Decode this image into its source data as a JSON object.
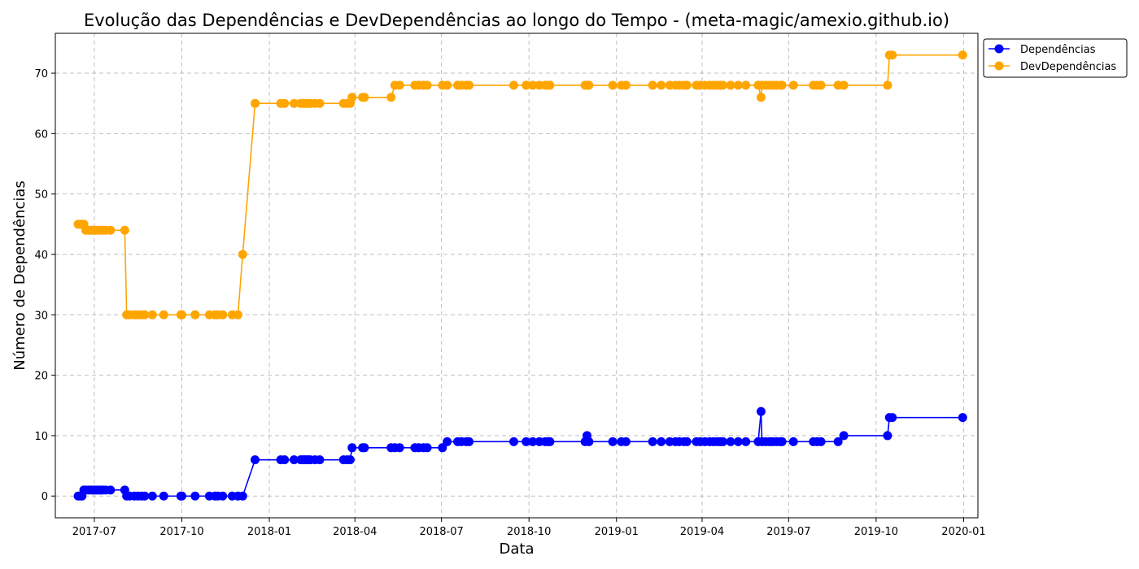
{
  "chart_data": {
    "type": "line",
    "title": "Evolução das Dependências e DevDependências ao longo do Tempo - (meta-magic/amexio.github.io)",
    "xlabel": "Data",
    "ylabel": "Número de Dependências",
    "x_axis": {
      "kind": "date",
      "min": "2017-05-21",
      "max": "2020-01-16",
      "tick_labels": [
        "2017-07",
        "2017-10",
        "2018-01",
        "2018-04",
        "2018-07",
        "2018-10",
        "2019-01",
        "2019-04",
        "2019-07",
        "2019-10",
        "2020-01"
      ]
    },
    "y_axis": {
      "min": -3.6,
      "max": 76.6,
      "tick_labels": [
        "0",
        "10",
        "20",
        "30",
        "40",
        "50",
        "60",
        "70"
      ]
    },
    "grid": true,
    "legend_position": "outside-top-right",
    "series": [
      {
        "name": "Dependências",
        "color": "#0000ff",
        "marker": "circle",
        "points": [
          [
            "2017-06-14",
            0
          ],
          [
            "2017-06-16",
            0
          ],
          [
            "2017-06-18",
            0
          ],
          [
            "2017-06-20",
            1
          ],
          [
            "2017-06-22",
            1
          ],
          [
            "2017-06-25",
            1
          ],
          [
            "2017-06-28",
            1
          ],
          [
            "2017-06-30",
            1
          ],
          [
            "2017-07-02",
            1
          ],
          [
            "2017-07-04",
            1
          ],
          [
            "2017-07-06",
            1
          ],
          [
            "2017-07-08",
            1
          ],
          [
            "2017-07-10",
            1
          ],
          [
            "2017-07-13",
            1
          ],
          [
            "2017-07-18",
            1
          ],
          [
            "2017-08-02",
            1
          ],
          [
            "2017-08-04",
            0
          ],
          [
            "2017-08-07",
            0
          ],
          [
            "2017-08-12",
            0
          ],
          [
            "2017-08-16",
            0
          ],
          [
            "2017-08-20",
            0
          ],
          [
            "2017-08-23",
            0
          ],
          [
            "2017-08-31",
            0
          ],
          [
            "2017-09-12",
            0
          ],
          [
            "2017-09-30",
            0
          ],
          [
            "2017-10-01",
            0
          ],
          [
            "2017-10-15",
            0
          ],
          [
            "2017-10-30",
            0
          ],
          [
            "2017-11-05",
            0
          ],
          [
            "2017-11-08",
            0
          ],
          [
            "2017-11-13",
            0
          ],
          [
            "2017-11-23",
            0
          ],
          [
            "2017-11-29",
            0
          ],
          [
            "2017-12-04",
            0
          ],
          [
            "2017-12-17",
            6
          ],
          [
            "2018-01-13",
            6
          ],
          [
            "2018-01-17",
            6
          ],
          [
            "2018-01-27",
            6
          ],
          [
            "2018-02-03",
            6
          ],
          [
            "2018-02-05",
            6
          ],
          [
            "2018-02-07",
            6
          ],
          [
            "2018-02-09",
            6
          ],
          [
            "2018-02-11",
            6
          ],
          [
            "2018-02-13",
            6
          ],
          [
            "2018-02-18",
            6
          ],
          [
            "2018-02-23",
            6
          ],
          [
            "2018-03-20",
            6
          ],
          [
            "2018-03-24",
            6
          ],
          [
            "2018-03-27",
            6
          ],
          [
            "2018-03-29",
            8
          ],
          [
            "2018-04-09",
            8
          ],
          [
            "2018-04-11",
            8
          ],
          [
            "2018-05-09",
            8
          ],
          [
            "2018-05-13",
            8
          ],
          [
            "2018-05-18",
            8
          ],
          [
            "2018-06-03",
            8
          ],
          [
            "2018-06-07",
            8
          ],
          [
            "2018-06-12",
            8
          ],
          [
            "2018-06-16",
            8
          ],
          [
            "2018-07-02",
            8
          ],
          [
            "2018-07-07",
            9
          ],
          [
            "2018-07-18",
            9
          ],
          [
            "2018-07-22",
            9
          ],
          [
            "2018-07-27",
            9
          ],
          [
            "2018-07-30",
            9
          ],
          [
            "2018-09-15",
            9
          ],
          [
            "2018-09-28",
            9
          ],
          [
            "2018-10-05",
            9
          ],
          [
            "2018-10-12",
            9
          ],
          [
            "2018-10-18",
            9
          ],
          [
            "2018-10-21",
            9
          ],
          [
            "2018-10-23",
            9
          ],
          [
            "2018-11-29",
            9
          ],
          [
            "2018-12-01",
            10
          ],
          [
            "2018-12-03",
            9
          ],
          [
            "2018-12-28",
            9
          ],
          [
            "2019-01-06",
            9
          ],
          [
            "2019-01-11",
            9
          ],
          [
            "2019-02-08",
            9
          ],
          [
            "2019-02-17",
            9
          ],
          [
            "2019-02-26",
            9
          ],
          [
            "2019-03-04",
            9
          ],
          [
            "2019-03-08",
            9
          ],
          [
            "2019-03-13",
            9
          ],
          [
            "2019-03-16",
            9
          ],
          [
            "2019-03-26",
            9
          ],
          [
            "2019-03-30",
            9
          ],
          [
            "2019-04-04",
            9
          ],
          [
            "2019-04-09",
            9
          ],
          [
            "2019-04-13",
            9
          ],
          [
            "2019-04-17",
            9
          ],
          [
            "2019-04-20",
            9
          ],
          [
            "2019-04-23",
            9
          ],
          [
            "2019-05-01",
            9
          ],
          [
            "2019-05-09",
            9
          ],
          [
            "2019-05-17",
            9
          ],
          [
            "2019-05-30",
            9
          ],
          [
            "2019-06-02",
            14
          ],
          [
            "2019-06-03",
            9
          ],
          [
            "2019-06-07",
            9
          ],
          [
            "2019-06-11",
            9
          ],
          [
            "2019-06-14",
            9
          ],
          [
            "2019-06-18",
            9
          ],
          [
            "2019-06-22",
            9
          ],
          [
            "2019-06-24",
            9
          ],
          [
            "2019-07-06",
            9
          ],
          [
            "2019-07-27",
            9
          ],
          [
            "2019-07-31",
            9
          ],
          [
            "2019-08-04",
            9
          ],
          [
            "2019-08-22",
            9
          ],
          [
            "2019-08-28",
            10
          ],
          [
            "2019-10-13",
            10
          ],
          [
            "2019-10-15",
            13
          ],
          [
            "2019-10-18",
            13
          ],
          [
            "2019-12-31",
            13
          ]
        ]
      },
      {
        "name": "DevDependências",
        "color": "#ffa500",
        "marker": "circle",
        "points": [
          [
            "2017-06-14",
            45
          ],
          [
            "2017-06-16",
            45
          ],
          [
            "2017-06-18",
            45
          ],
          [
            "2017-06-20",
            45
          ],
          [
            "2017-06-22",
            44
          ],
          [
            "2017-06-25",
            44
          ],
          [
            "2017-06-28",
            44
          ],
          [
            "2017-06-30",
            44
          ],
          [
            "2017-07-02",
            44
          ],
          [
            "2017-07-04",
            44
          ],
          [
            "2017-07-06",
            44
          ],
          [
            "2017-07-08",
            44
          ],
          [
            "2017-07-10",
            44
          ],
          [
            "2017-07-13",
            44
          ],
          [
            "2017-07-18",
            44
          ],
          [
            "2017-08-02",
            44
          ],
          [
            "2017-08-04",
            30
          ],
          [
            "2017-08-07",
            30
          ],
          [
            "2017-08-12",
            30
          ],
          [
            "2017-08-16",
            30
          ],
          [
            "2017-08-20",
            30
          ],
          [
            "2017-08-23",
            30
          ],
          [
            "2017-08-31",
            30
          ],
          [
            "2017-09-12",
            30
          ],
          [
            "2017-09-30",
            30
          ],
          [
            "2017-10-01",
            30
          ],
          [
            "2017-10-15",
            30
          ],
          [
            "2017-10-30",
            30
          ],
          [
            "2017-11-05",
            30
          ],
          [
            "2017-11-08",
            30
          ],
          [
            "2017-11-13",
            30
          ],
          [
            "2017-11-23",
            30
          ],
          [
            "2017-11-29",
            30
          ],
          [
            "2017-12-04",
            40
          ],
          [
            "2017-12-17",
            65
          ],
          [
            "2018-01-13",
            65
          ],
          [
            "2018-01-17",
            65
          ],
          [
            "2018-01-27",
            65
          ],
          [
            "2018-02-03",
            65
          ],
          [
            "2018-02-05",
            65
          ],
          [
            "2018-02-07",
            65
          ],
          [
            "2018-02-09",
            65
          ],
          [
            "2018-02-11",
            65
          ],
          [
            "2018-02-13",
            65
          ],
          [
            "2018-02-18",
            65
          ],
          [
            "2018-02-23",
            65
          ],
          [
            "2018-03-20",
            65
          ],
          [
            "2018-03-24",
            65
          ],
          [
            "2018-03-27",
            65
          ],
          [
            "2018-03-29",
            66
          ],
          [
            "2018-04-09",
            66
          ],
          [
            "2018-04-11",
            66
          ],
          [
            "2018-05-09",
            66
          ],
          [
            "2018-05-13",
            68
          ],
          [
            "2018-05-18",
            68
          ],
          [
            "2018-06-03",
            68
          ],
          [
            "2018-06-07",
            68
          ],
          [
            "2018-06-12",
            68
          ],
          [
            "2018-06-16",
            68
          ],
          [
            "2018-07-02",
            68
          ],
          [
            "2018-07-07",
            68
          ],
          [
            "2018-07-18",
            68
          ],
          [
            "2018-07-22",
            68
          ],
          [
            "2018-07-27",
            68
          ],
          [
            "2018-07-30",
            68
          ],
          [
            "2018-09-15",
            68
          ],
          [
            "2018-09-28",
            68
          ],
          [
            "2018-10-05",
            68
          ],
          [
            "2018-10-12",
            68
          ],
          [
            "2018-10-18",
            68
          ],
          [
            "2018-10-21",
            68
          ],
          [
            "2018-10-23",
            68
          ],
          [
            "2018-11-29",
            68
          ],
          [
            "2018-12-01",
            68
          ],
          [
            "2018-12-03",
            68
          ],
          [
            "2018-12-28",
            68
          ],
          [
            "2019-01-06",
            68
          ],
          [
            "2019-01-11",
            68
          ],
          [
            "2019-02-08",
            68
          ],
          [
            "2019-02-17",
            68
          ],
          [
            "2019-02-26",
            68
          ],
          [
            "2019-03-04",
            68
          ],
          [
            "2019-03-08",
            68
          ],
          [
            "2019-03-13",
            68
          ],
          [
            "2019-03-16",
            68
          ],
          [
            "2019-03-26",
            68
          ],
          [
            "2019-03-30",
            68
          ],
          [
            "2019-04-04",
            68
          ],
          [
            "2019-04-09",
            68
          ],
          [
            "2019-04-13",
            68
          ],
          [
            "2019-04-17",
            68
          ],
          [
            "2019-04-20",
            68
          ],
          [
            "2019-04-23",
            68
          ],
          [
            "2019-05-01",
            68
          ],
          [
            "2019-05-09",
            68
          ],
          [
            "2019-05-17",
            68
          ],
          [
            "2019-05-30",
            68
          ],
          [
            "2019-06-02",
            66
          ],
          [
            "2019-06-03",
            68
          ],
          [
            "2019-06-07",
            68
          ],
          [
            "2019-06-11",
            68
          ],
          [
            "2019-06-14",
            68
          ],
          [
            "2019-06-18",
            68
          ],
          [
            "2019-06-22",
            68
          ],
          [
            "2019-06-24",
            68
          ],
          [
            "2019-07-06",
            68
          ],
          [
            "2019-07-27",
            68
          ],
          [
            "2019-07-31",
            68
          ],
          [
            "2019-08-04",
            68
          ],
          [
            "2019-08-22",
            68
          ],
          [
            "2019-08-28",
            68
          ],
          [
            "2019-10-13",
            68
          ],
          [
            "2019-10-15",
            73
          ],
          [
            "2019-10-18",
            73
          ],
          [
            "2019-12-31",
            73
          ]
        ]
      }
    ]
  }
}
